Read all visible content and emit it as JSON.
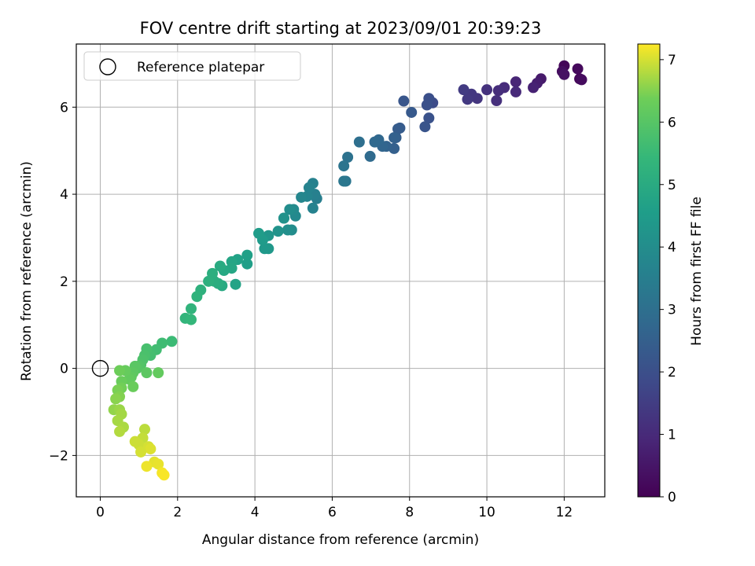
{
  "chart_data": {
    "type": "scatter",
    "title": "FOV centre drift starting at 2023/09/01 20:39:23",
    "xlabel": "Angular distance from reference (arcmin)",
    "ylabel": "Rotation from reference (arcmin)",
    "xlim": [
      -0.62,
      13.05
    ],
    "ylim": [
      -2.95,
      7.45
    ],
    "xticks": [
      0,
      2,
      4,
      6,
      8,
      10,
      12
    ],
    "yticks": [
      -2,
      0,
      2,
      4,
      6
    ],
    "grid": true,
    "legend": {
      "position": "top-left",
      "entries": [
        "Reference platepar"
      ]
    },
    "colorbar": {
      "label": "Hours from first FF file",
      "colormap": "viridis",
      "range": [
        0,
        7.25
      ],
      "ticks": [
        0,
        1,
        2,
        3,
        4,
        5,
        6,
        7
      ]
    },
    "reference_point": {
      "x": 0,
      "y": 0,
      "marker": "open-circle"
    },
    "series": [
      {
        "x": [
          12.0,
          12.35,
          11.95,
          12.0,
          12.4,
          12.45,
          11.4,
          11.3,
          11.2,
          10.75,
          10.75,
          10.45,
          10.3,
          10.25,
          10.0,
          9.75,
          9.6,
          9.5,
          9.4,
          8.6,
          8.5,
          8.45,
          8.5,
          8.4,
          8.05,
          7.85,
          7.75,
          7.7,
          7.65,
          7.6,
          7.6,
          7.4,
          7.3,
          7.2,
          7.1,
          6.98,
          6.7,
          6.4,
          6.3,
          6.35,
          6.3,
          5.6,
          5.55,
          5.5,
          5.5,
          5.4,
          5.35,
          5.2,
          5.05,
          5.0,
          4.95,
          4.9,
          4.85,
          4.75,
          4.75,
          4.6,
          4.35,
          4.35,
          4.25,
          4.2,
          4.1,
          3.8,
          3.8,
          3.55,
          3.5,
          3.4,
          3.4,
          3.2,
          3.15,
          3.1,
          3.05,
          2.95,
          2.9,
          2.8,
          2.6,
          2.5,
          2.35,
          2.2,
          2.35,
          1.85,
          1.6,
          1.45,
          1.3,
          1.2,
          1.15,
          1.1,
          1.05,
          1.0,
          0.95,
          0.9,
          0.85,
          0.8,
          0.75,
          0.65,
          0.55,
          0.5,
          1.2,
          1.5,
          0.85,
          0.55,
          0.45,
          0.5,
          0.4,
          0.35,
          0.5,
          0.55,
          0.45,
          0.6,
          0.5,
          1.15,
          1.1,
          1.0,
          1.25,
          0.9,
          1.3,
          1.05,
          1.4,
          1.5,
          1.2,
          1.6,
          1.65
        ],
        "y": [
          6.95,
          6.88,
          6.82,
          6.75,
          6.65,
          6.63,
          6.65,
          6.55,
          6.45,
          6.58,
          6.35,
          6.45,
          6.38,
          6.15,
          6.4,
          6.2,
          6.3,
          6.18,
          6.4,
          6.1,
          6.2,
          6.05,
          5.75,
          5.55,
          5.88,
          6.14,
          5.52,
          5.5,
          5.3,
          5.05,
          5.3,
          5.1,
          5.1,
          5.25,
          5.2,
          4.87,
          5.2,
          4.85,
          4.65,
          4.3,
          4.3,
          3.9,
          4.0,
          4.25,
          3.68,
          4.15,
          3.95,
          3.93,
          3.5,
          3.65,
          3.18,
          3.65,
          3.18,
          3.45,
          3.45,
          3.15,
          3.05,
          2.75,
          2.75,
          2.95,
          3.1,
          2.4,
          2.6,
          2.5,
          1.93,
          2.45,
          2.3,
          2.25,
          1.9,
          2.35,
          1.95,
          2.0,
          2.18,
          2.0,
          1.8,
          1.65,
          1.37,
          1.15,
          1.12,
          0.62,
          0.58,
          0.43,
          0.3,
          0.45,
          0.3,
          0.2,
          0.08,
          0.05,
          0.0,
          0.05,
          -0.1,
          -0.2,
          -0.25,
          -0.05,
          -0.3,
          -0.05,
          -0.1,
          -0.1,
          -0.42,
          -0.45,
          -0.5,
          -0.65,
          -0.7,
          -0.95,
          -0.95,
          -1.05,
          -1.2,
          -1.35,
          -1.45,
          -1.4,
          -1.6,
          -1.75,
          -1.8,
          -1.68,
          -1.85,
          -1.92,
          -2.15,
          -2.2,
          -2.25,
          -2.4,
          -2.45
        ],
        "hours": [
          0.1,
          0.2,
          0.3,
          0.4,
          0.15,
          0.25,
          0.6,
          0.7,
          0.8,
          0.9,
          1.0,
          1.05,
          1.1,
          1.15,
          1.2,
          1.3,
          1.35,
          1.4,
          1.45,
          1.9,
          2.0,
          2.05,
          2.1,
          2.15,
          2.3,
          2.2,
          2.35,
          2.4,
          2.45,
          2.5,
          2.55,
          2.6,
          2.7,
          2.75,
          2.8,
          2.85,
          3.0,
          3.1,
          3.15,
          3.2,
          3.25,
          3.5,
          3.55,
          3.6,
          3.62,
          3.65,
          3.7,
          3.75,
          3.85,
          3.9,
          3.95,
          4.0,
          4.05,
          4.1,
          4.15,
          4.2,
          4.3,
          4.35,
          4.4,
          4.45,
          4.5,
          4.6,
          4.65,
          4.7,
          4.75,
          4.8,
          4.85,
          4.9,
          4.95,
          5.0,
          5.05,
          5.1,
          5.12,
          5.15,
          5.2,
          5.25,
          5.3,
          5.35,
          5.4,
          5.55,
          5.6,
          5.65,
          5.7,
          5.75,
          5.8,
          5.85,
          5.9,
          5.95,
          6.0,
          6.05,
          6.1,
          6.15,
          6.2,
          6.25,
          6.3,
          6.35,
          6.1,
          6.2,
          6.3,
          6.4,
          6.45,
          6.5,
          6.55,
          6.6,
          6.65,
          6.7,
          6.72,
          6.75,
          6.8,
          6.85,
          6.9,
          6.95,
          7.0,
          6.95,
          7.05,
          7.0,
          7.1,
          7.12,
          7.15,
          7.2,
          7.22
        ]
      }
    ]
  }
}
